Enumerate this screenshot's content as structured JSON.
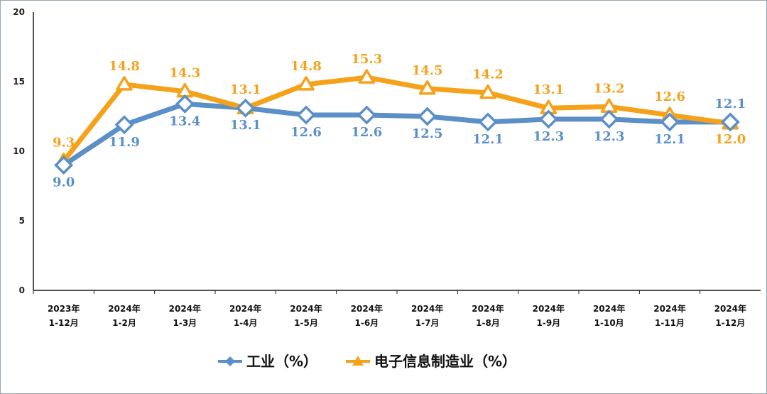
{
  "chart_data": {
    "type": "line",
    "categories": [
      [
        "2023年",
        "1-12月"
      ],
      [
        "2024年",
        "1-2月"
      ],
      [
        "2024年",
        "1-3月"
      ],
      [
        "2024年",
        "1-4月"
      ],
      [
        "2024年",
        "1-5月"
      ],
      [
        "2024年",
        "1-6月"
      ],
      [
        "2024年",
        "1-7月"
      ],
      [
        "2024年",
        "1-8月"
      ],
      [
        "2024年",
        "1-9月"
      ],
      [
        "2024年",
        "1-10月"
      ],
      [
        "2024年",
        "1-11月"
      ],
      [
        "2024年",
        "1-12月"
      ]
    ],
    "series": [
      {
        "name": "工业（%）",
        "color": "#5b8fc7",
        "marker": "diamond",
        "values": [
          9.0,
          11.9,
          13.4,
          13.1,
          12.6,
          12.6,
          12.5,
          12.1,
          12.3,
          12.3,
          12.1,
          12.1
        ]
      },
      {
        "name": "电子信息制造业（%）",
        "color": "#f5a21b",
        "marker": "triangle",
        "values": [
          9.3,
          14.8,
          14.3,
          13.1,
          14.8,
          15.3,
          14.5,
          14.2,
          13.1,
          13.2,
          12.6,
          12.0
        ]
      }
    ],
    "ylim": [
      0,
      20
    ],
    "yticks": [
      "0",
      "5",
      "10",
      "15",
      "20"
    ],
    "legend_position": "bottom-center",
    "grid": false
  }
}
